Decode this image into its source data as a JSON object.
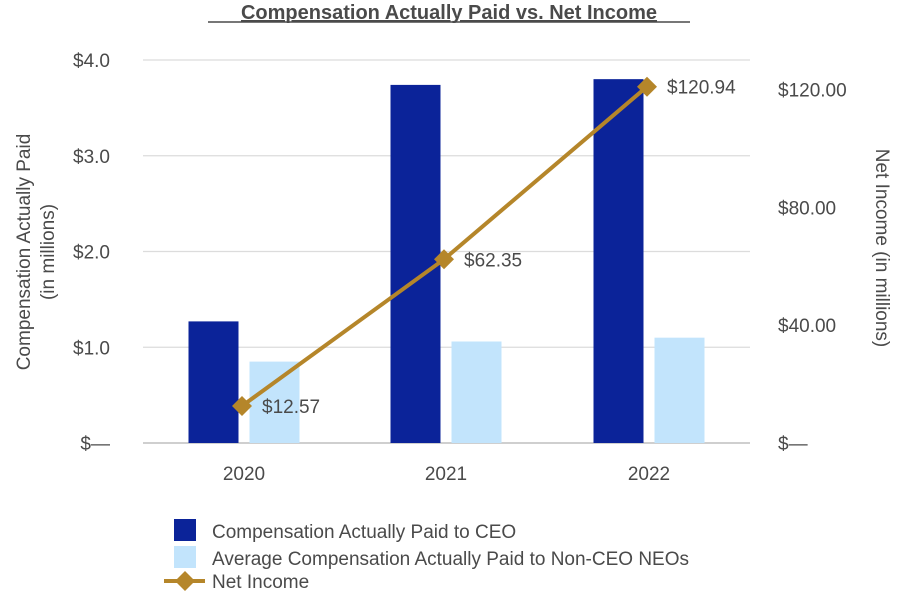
{
  "chart_data": {
    "type": "bar",
    "title": "Compensation Actually Paid vs. Net Income",
    "categories": [
      "2020",
      "2021",
      "2022"
    ],
    "ylabel": [
      "Compensation Actually Paid",
      "(in millions)"
    ],
    "y2label": "Net Income (in millions)",
    "ylim": [
      0,
      4
    ],
    "y2lim": [
      0,
      130
    ],
    "yticks": [
      {
        "value": 0,
        "label": "$—"
      },
      {
        "value": 1,
        "label": "$1.0"
      },
      {
        "value": 2,
        "label": "$2.0"
      },
      {
        "value": 3,
        "label": "$3.0"
      },
      {
        "value": 4,
        "label": "$4.0"
      }
    ],
    "y2ticks": [
      {
        "value": 0,
        "label": "$—"
      },
      {
        "value": 40,
        "label": "$40.00"
      },
      {
        "value": 80,
        "label": "$80.00"
      },
      {
        "value": 120,
        "label": "$120.00"
      }
    ],
    "grid": true,
    "series": [
      {
        "name": "Compensation Actually Paid to CEO",
        "type": "bar",
        "axis": "left",
        "color": "#0b2399",
        "values": [
          1.27,
          3.74,
          3.8
        ]
      },
      {
        "name": "Average Compensation Actually Paid to Non-CEO NEOs",
        "type": "bar",
        "axis": "left",
        "color": "#c2e4fc",
        "values": [
          0.85,
          1.06,
          1.1
        ]
      },
      {
        "name": "Net Income",
        "type": "line",
        "axis": "right",
        "color": "#b5862a",
        "values": [
          12.57,
          62.35,
          120.94
        ],
        "labels": [
          "$12.57",
          "$62.35",
          "$120.94"
        ]
      }
    ],
    "legend_position": "bottom-left"
  }
}
